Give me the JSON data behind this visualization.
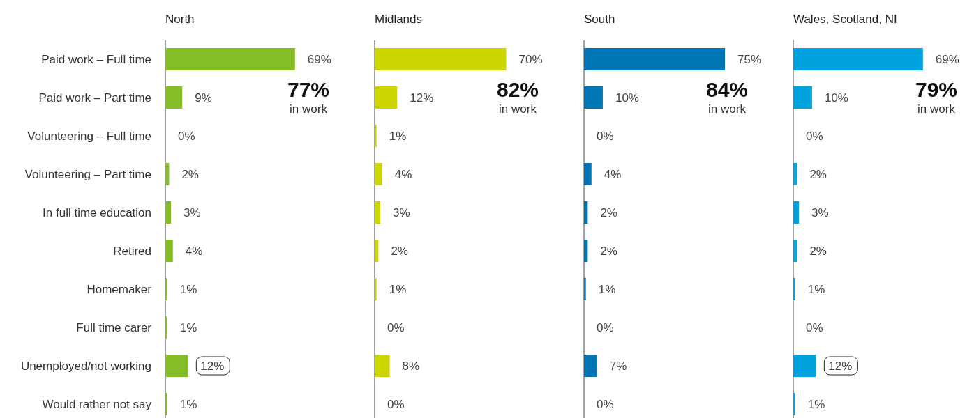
{
  "chart_data": [
    {
      "type": "bar",
      "orientation": "horizontal",
      "title": "North",
      "categories": [
        "Paid work – Full time",
        "Paid work – Part time",
        "Volunteering – Full time",
        "Volunteering – Part time",
        "In full time education",
        "Retired",
        "Homemaker",
        "Full time carer",
        "Unemployed/not working",
        "Would rather not say"
      ],
      "values": [
        69,
        9,
        0,
        2,
        3,
        4,
        1,
        1,
        12,
        1
      ],
      "color": "#84bd26",
      "data_labels": true,
      "value_labels": [
        "69%",
        "9%",
        "0%",
        "2%",
        "3%",
        "4%",
        "1%",
        "1%",
        null,
        "1%"
      ],
      "tick_labels": "y",
      "annotations": [
        "77%",
        "in work",
        {
          "text": "12%",
          "x": 12,
          "y": "Unemployed/not working"
        }
      ]
    },
    {
      "type": "bar",
      "orientation": "horizontal",
      "title": "Midlands",
      "categories": [
        "Paid work – Full time",
        "Paid work – Part time",
        "Volunteering – Full time",
        "Volunteering – Part time",
        "In full time education",
        "Retired",
        "Homemaker",
        "Full time carer",
        "Unemployed/not working",
        "Would rather not say"
      ],
      "values": [
        70,
        12,
        1,
        4,
        3,
        2,
        1,
        0,
        8,
        0
      ],
      "color": "#cdd500",
      "data_labels": true,
      "value_labels": [
        "70%",
        "12%",
        "1%",
        "4%",
        "3%",
        "2%",
        "1%",
        "0%",
        "8%",
        "0%"
      ],
      "tick_labels": false,
      "annotations": [
        "82%",
        "in work"
      ]
    },
    {
      "type": "bar",
      "orientation": "horizontal",
      "title": "South",
      "categories": [
        "Paid work – Full time",
        "Paid work – Part time",
        "Volunteering – Full time",
        "Volunteering – Part time",
        "In full time education",
        "Retired",
        "Homemaker",
        "Full time carer",
        "Unemployed/not working",
        "Would rather not say"
      ],
      "values": [
        75,
        10,
        0,
        4,
        2,
        2,
        1,
        0,
        7,
        0
      ],
      "color": "#0076b6",
      "data_labels": true,
      "value_labels": [
        "75%",
        "10%",
        "0%",
        "4%",
        "2%",
        "2%",
        "1%",
        "0%",
        "7%",
        "0%"
      ],
      "tick_labels": false,
      "annotations": [
        "84%",
        "in work"
      ]
    },
    {
      "type": "bar",
      "orientation": "horizontal",
      "title": "Wales, Scotland, NI",
      "categories": [
        "Paid work – Full time",
        "Paid work – Part time",
        "Volunteering – Full time",
        "Volunteering – Part time",
        "In full time education",
        "Retired",
        "Homemaker",
        "Full time carer",
        "Unemployed/not working",
        "Would rather not say"
      ],
      "values": [
        69,
        10,
        0,
        2,
        3,
        2,
        1,
        0,
        12,
        1
      ],
      "color": "#00a3e0",
      "data_labels": true,
      "value_labels": [
        "69%",
        "10%",
        "0%",
        "2%",
        "3%",
        "2%",
        "1%",
        "0%",
        null,
        "1%"
      ],
      "tick_labels": false,
      "annotations": [
        "79%",
        "in work",
        {
          "text": "12%",
          "x": 12,
          "y": "Unemployed/not working"
        }
      ]
    }
  ]
}
